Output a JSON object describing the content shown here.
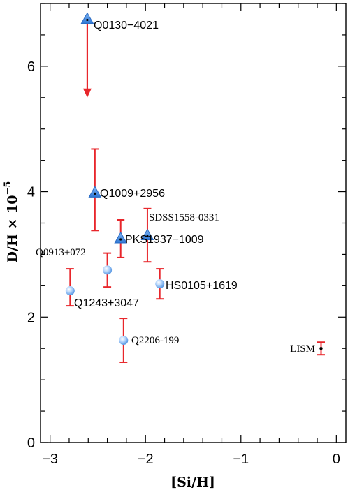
{
  "chart_data": {
    "type": "scatter",
    "title": "",
    "xlabel": "[Si/H]",
    "ylabel_main": "D/H × 10",
    "ylabel_exp": "−5",
    "xlim": [
      -3.1,
      0.1
    ],
    "ylim": [
      0,
      7.0
    ],
    "xticks": [
      -3,
      -2,
      -1,
      0
    ],
    "xtick_labels": [
      "−3",
      "−2",
      "−1",
      "0"
    ],
    "yticks": [
      0,
      2,
      4,
      6
    ],
    "ytick_labels": [
      "0",
      "2",
      "4",
      "6"
    ],
    "grid": false,
    "colors": {
      "errorbar": "#e8262b",
      "marker": "#4a8fe0",
      "marker_light": "#b5d5fb",
      "arrow": "#e8262b"
    },
    "points": [
      {
        "label": "Q0130−4021",
        "x": -2.61,
        "y": 6.75,
        "marker": "triangle",
        "upper_limit": true,
        "arrow_to": 5.5
      },
      {
        "label": "Q1009+2956",
        "x": -2.53,
        "y": 3.98,
        "yerr_low": 3.38,
        "yerr_high": 4.68,
        "marker": "triangle"
      },
      {
        "label": "PKS1937−1009",
        "x": -2.26,
        "y": 3.25,
        "yerr_low": 2.95,
        "yerr_high": 3.55,
        "marker": "triangle"
      },
      {
        "label": "SDSS1558-0331",
        "x": -1.98,
        "y": 3.3,
        "yerr_low": 2.88,
        "yerr_high": 3.73,
        "marker": "triangle"
      },
      {
        "label": "Q0913+072",
        "x": -2.4,
        "y": 2.75,
        "yerr_low": 2.48,
        "yerr_high": 3.02,
        "marker": "circle"
      },
      {
        "label": "Q1243+3047",
        "x": -2.79,
        "y": 2.42,
        "yerr_low": 2.18,
        "yerr_high": 2.77,
        "marker": "circle"
      },
      {
        "label": "HS0105+1619",
        "x": -1.85,
        "y": 2.53,
        "yerr_low": 2.29,
        "yerr_high": 2.77,
        "marker": "circle"
      },
      {
        "label": "Q2206-199",
        "x": -2.23,
        "y": 1.63,
        "yerr_low": 1.28,
        "yerr_high": 1.98,
        "marker": "circle"
      },
      {
        "label": "LISM",
        "x": -0.16,
        "y": 1.5,
        "yerr_low": 1.4,
        "yerr_high": 1.6,
        "marker": "dot"
      }
    ]
  }
}
